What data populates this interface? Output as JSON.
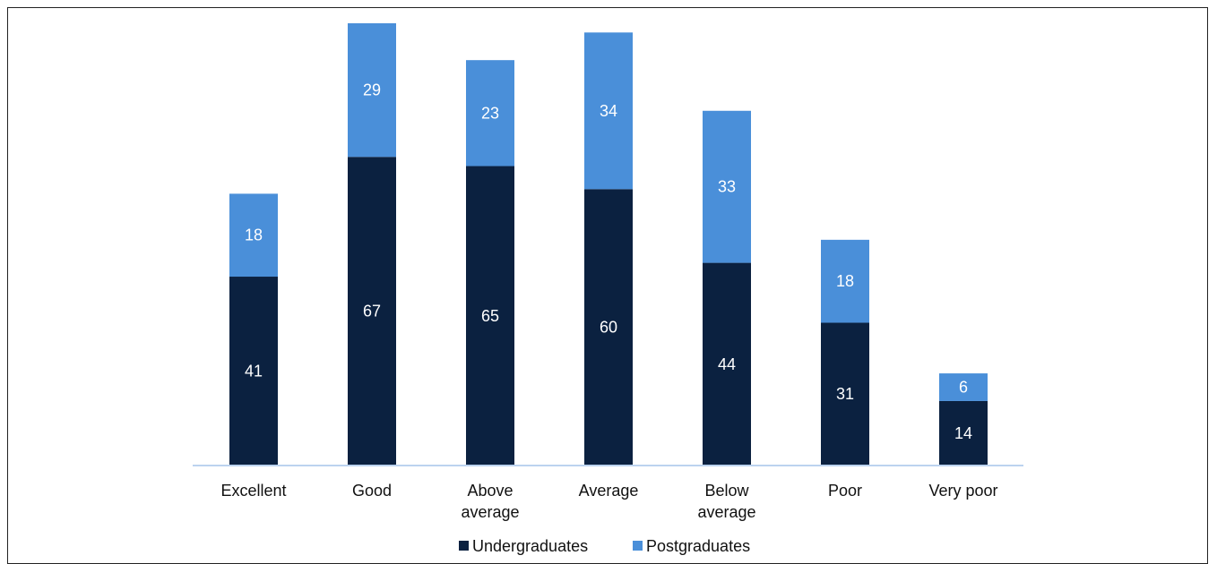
{
  "chart_data": {
    "type": "bar",
    "stacked": true,
    "categories": [
      "Excellent",
      "Good",
      "Above average",
      "Average",
      "Below average",
      "Poor",
      "Very poor"
    ],
    "category_labels": [
      [
        "Excellent"
      ],
      [
        "Good"
      ],
      [
        "Above",
        "average"
      ],
      [
        "Average"
      ],
      [
        "Below",
        "average"
      ],
      [
        "Poor"
      ],
      [
        "Very poor"
      ]
    ],
    "series": [
      {
        "name": "Undergraduates",
        "values": [
          41,
          67,
          65,
          60,
          44,
          31,
          14
        ],
        "color": "#0b2140"
      },
      {
        "name": "Postgraduates",
        "values": [
          18,
          29,
          23,
          34,
          33,
          18,
          6
        ],
        "color": "#4a8fd9"
      }
    ],
    "title": "",
    "xlabel": "",
    "ylabel": "",
    "ylim": [
      0,
      96
    ],
    "grid": false,
    "legend_position": "bottom",
    "data_labels": true,
    "axis_color": "#bcd3ef"
  }
}
